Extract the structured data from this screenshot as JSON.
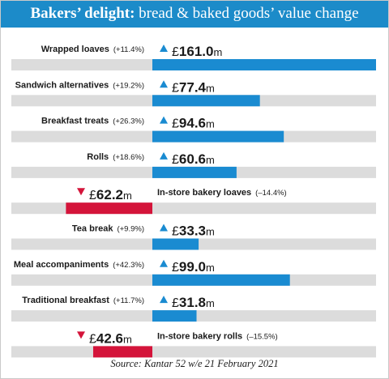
{
  "title": {
    "bold": "Bakers’ delight:",
    "rest": "bread & baked goods’ value change"
  },
  "source": "Source: Kantar 52 w/e 21 February 2021",
  "colors": {
    "header": "#1c8bc9",
    "increase": "#1a8bd1",
    "decrease": "#d4143a",
    "track": "#dcdcdc",
    "up_arrow": "#1a8bd1",
    "down_arrow": "#d4143a"
  },
  "chart_data": {
    "type": "bar",
    "orientation": "horizontal-diverging",
    "unit": "£m",
    "categories": [
      "Wrapped loaves",
      "Sandwich alternatives",
      "Breakfast treats",
      "Rolls",
      "In-store bakery loaves",
      "Tea break",
      "Meal accompaniments",
      "Traditional breakfast",
      "In-store bakery rolls"
    ],
    "changes": [
      "(+11.4%)",
      "(+19.2%)",
      "(+26.3%)",
      "(+18.6%)",
      "(–14.4%)",
      "(+9.9%)",
      "(+42.3%)",
      "(+11.7%)",
      "(–15.5%)"
    ],
    "direction": [
      "up",
      "up",
      "up",
      "up",
      "down",
      "up",
      "up",
      "up",
      "down"
    ],
    "value_labels": [
      "161.0",
      "77.4",
      "94.6",
      "60.6",
      "62.2",
      "33.3",
      "99.0",
      "31.8",
      "42.6"
    ],
    "values": [
      161.0,
      77.4,
      94.6,
      60.6,
      -62.2,
      33.3,
      99.0,
      31.8,
      -42.6
    ],
    "currency_symbol": "£",
    "unit_suffix": "m"
  }
}
